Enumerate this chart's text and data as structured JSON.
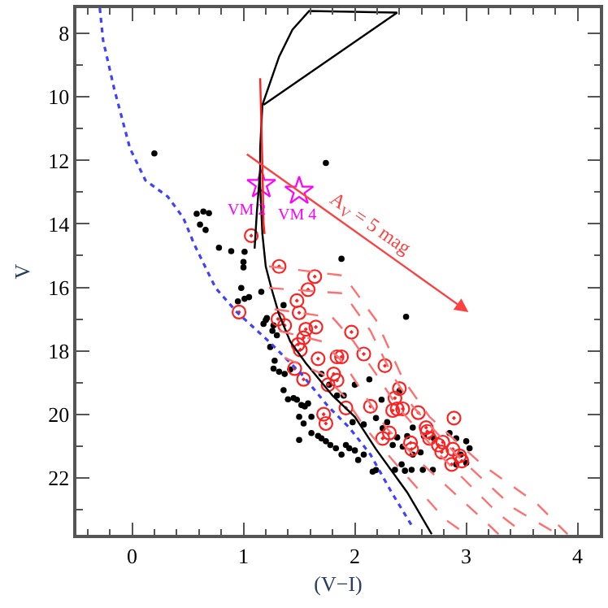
{
  "chart_data": {
    "type": "scatter",
    "xlabel": "(V−I)",
    "ylabel": "V",
    "xlim": [
      -0.5,
      4.2
    ],
    "ylim": [
      23.8,
      7.2
    ],
    "xticks": [
      0,
      1,
      2,
      3,
      4
    ],
    "yticks": [
      8,
      10,
      12,
      14,
      16,
      18,
      20,
      22
    ],
    "series": [
      {
        "color": "#000000",
        "marker": "circle",
        "x": [
          0.2,
          1.74,
          0.58,
          0.61,
          0.64,
          0.69,
          0.66,
          0.78,
          0.89,
          1.01,
          1.0,
          1.0,
          0.98,
          0.95,
          1.01,
          1.05,
          1.16,
          1.88,
          2.46,
          1.2,
          1.18,
          1.21,
          1.36,
          1.27,
          1.26,
          1.3,
          1.24,
          1.28,
          1.27,
          1.32,
          1.37,
          1.42,
          1.36,
          1.4,
          1.45,
          1.48,
          1.52,
          1.55,
          1.58,
          1.5,
          1.61,
          1.54,
          1.61,
          1.67,
          1.7,
          1.74,
          1.78,
          1.83,
          1.88,
          1.92,
          1.95,
          2.0,
          2.03,
          2.08,
          1.98,
          2.08,
          2.19,
          2.25,
          2.29,
          2.38,
          2.34,
          2.43,
          2.47,
          2.52,
          2.59,
          2.36,
          2.42,
          2.16,
          2.19,
          2.45,
          2.51,
          2.61,
          2.7,
          1.5,
          1.7,
          1.77,
          1.84,
          1.9,
          2.0,
          2.13,
          2.24,
          2.4,
          2.52,
          2.62,
          2.71,
          2.85,
          2.91,
          3.0,
          2.95,
          3.03,
          3.0,
          2.91
        ],
        "values": [
          11.78,
          12.08,
          13.68,
          14.02,
          13.61,
          13.66,
          14.19,
          14.75,
          14.86,
          14.88,
          15.2,
          15.37,
          16.02,
          16.44,
          16.36,
          16.31,
          16.14,
          15.1,
          16.93,
          17.03,
          17.15,
          16.97,
          16.56,
          17.2,
          17.37,
          17.51,
          17.88,
          18.31,
          18.56,
          18.66,
          18.73,
          18.59,
          19.24,
          19.53,
          19.49,
          19.54,
          19.71,
          19.75,
          19.66,
          20.08,
          20.08,
          20.29,
          20.59,
          20.68,
          20.76,
          20.85,
          20.97,
          21.07,
          21.27,
          20.97,
          21.07,
          21.14,
          21.44,
          21.27,
          20.25,
          20.32,
          20.12,
          20.44,
          20.25,
          20.73,
          20.97,
          21.02,
          20.69,
          21.27,
          21.2,
          21.75,
          21.58,
          21.81,
          21.76,
          21.78,
          21.75,
          21.75,
          21.75,
          20.81,
          18.73,
          19.07,
          19.41,
          19.41,
          19.07,
          18.9,
          19.54,
          19.27,
          20.42,
          20.68,
          20.76,
          20.59,
          20.76,
          20.85,
          21.27,
          21.07,
          21.53,
          21.58
        ]
      },
      {
        "color": "#ff2020",
        "marker": "circle",
        "x": [
          1.07,
          0.96,
          1.32,
          1.64,
          1.58,
          1.48,
          1.5,
          1.31,
          1.37,
          1.56,
          1.65,
          1.97,
          1.49,
          1.51,
          1.54,
          1.67,
          1.84,
          1.88,
          2.08,
          2.27,
          1.46,
          1.54,
          1.76,
          1.81,
          1.84,
          2.14,
          1.92,
          2.4,
          2.36,
          2.38,
          2.43,
          2.34,
          2.57,
          2.89,
          1.72,
          1.74,
          2.25,
          2.31,
          2.5,
          2.51,
          2.64,
          2.67,
          2.65,
          2.75,
          2.79,
          2.78,
          2.88,
          2.87,
          2.94,
          2.96
        ],
        "values": [
          14.37,
          16.78,
          15.34,
          15.66,
          16.07,
          16.42,
          16.8,
          17.0,
          17.2,
          17.32,
          17.25,
          17.41,
          17.8,
          17.97,
          17.59,
          18.25,
          18.19,
          18.19,
          18.1,
          18.47,
          18.56,
          18.9,
          19.07,
          18.73,
          18.93,
          19.75,
          19.8,
          19.19,
          19.49,
          19.83,
          19.83,
          19.88,
          19.95,
          20.12,
          20.0,
          20.29,
          20.76,
          20.59,
          20.9,
          21.1,
          20.42,
          20.76,
          20.54,
          20.97,
          20.88,
          21.19,
          21.1,
          21.58,
          21.31,
          21.47
        ]
      },
      {
        "color": "#ff00ff",
        "marker": "star",
        "x": [
          1.16,
          1.5
        ],
        "values": [
          12.76,
          12.97
        ]
      },
      {
        "type": "line",
        "color": "#4040ff",
        "line_style": "dotted",
        "x": [
          -0.29,
          -0.26,
          -0.16,
          -0.02,
          0.12,
          0.32,
          0.46,
          0.56,
          0.75,
          0.94,
          1.23,
          1.52,
          1.76,
          1.95,
          2.14,
          2.33,
          2.52
        ],
        "values": [
          7.2,
          8.22,
          9.75,
          11.61,
          12.63,
          13.14,
          13.81,
          14.66,
          16.02,
          16.78,
          17.71,
          18.73,
          19.75,
          20.42,
          21.27,
          22.46,
          23.56
        ]
      },
      {
        "type": "line",
        "color": "#000000",
        "line_style": "solid",
        "x": [
          2.69,
          2.47,
          2.19,
          2.0,
          1.8,
          1.56,
          1.42,
          1.32,
          1.25,
          1.2,
          1.17,
          1.15,
          1.15,
          1.17,
          1.32,
          1.44,
          1.59,
          2.38,
          1.18
        ],
        "values": [
          23.78,
          22.46,
          21.1,
          20.08,
          19.41,
          18.39,
          17.71,
          16.86,
          16.02,
          15.34,
          14.32,
          12.8,
          11.61,
          10.25,
          8.73,
          7.88,
          7.29,
          7.34,
          10.25
        ]
      },
      {
        "type": "line",
        "color": "#000000",
        "line_style": "solid",
        "x": [
          1.1,
          1.12,
          1.15
        ],
        "values": [
          14.78,
          13.64,
          12.29
        ]
      },
      {
        "type": "line",
        "color": "#ff2020",
        "line_style": "solid",
        "x": [
          1.15,
          1.17,
          1.18,
          1.19
        ],
        "values": [
          9.41,
          12.12,
          13.98,
          14.32
        ]
      },
      {
        "type": "line",
        "color": "#ff7070",
        "line_style": "dashed",
        "x": [
          1.23,
          1.9,
          2.19,
          2.43,
          2.67,
          3.15,
          3.63,
          3.91
        ],
        "values": [
          15.34,
          15.63,
          17.03,
          18.88,
          20.08,
          21.61,
          22.8,
          23.78
        ]
      },
      {
        "type": "line",
        "color": "#ff7070",
        "line_style": "dashed",
        "x": [
          1.23,
          1.9,
          2.14,
          2.33,
          2.52,
          2.91,
          3.43,
          3.82
        ],
        "values": [
          16.02,
          16.19,
          17.37,
          18.73,
          19.75,
          21.27,
          22.97,
          23.78
        ]
      },
      {
        "type": "line",
        "color": "#ff7070",
        "line_style": "dashed",
        "x": [
          1.28,
          1.8,
          1.99,
          2.19,
          2.38,
          2.76,
          3.29,
          3.53
        ],
        "values": [
          16.69,
          16.95,
          17.71,
          18.73,
          19.75,
          21.27,
          23.14,
          23.78
        ]
      },
      {
        "type": "line",
        "color": "#ff7070",
        "line_style": "dashed",
        "x": [
          1.32,
          1.71,
          1.9,
          2.09,
          2.28,
          2.62,
          3.15,
          3.29
        ],
        "values": [
          17.37,
          17.71,
          18.39,
          19.41,
          20.42,
          21.61,
          23.31,
          23.78
        ]
      },
      {
        "type": "line",
        "color": "#ff7070",
        "line_style": "dashed",
        "x": [
          1.37,
          1.71,
          1.9,
          2.09,
          2.38,
          2.81,
          3.0
        ],
        "values": [
          18.22,
          18.73,
          19.41,
          20.42,
          21.61,
          23.31,
          23.78
        ]
      }
    ],
    "annotations": [
      "VM 2",
      "VM 4",
      "A$_{V}$ = 5 mag"
    ]
  }
}
